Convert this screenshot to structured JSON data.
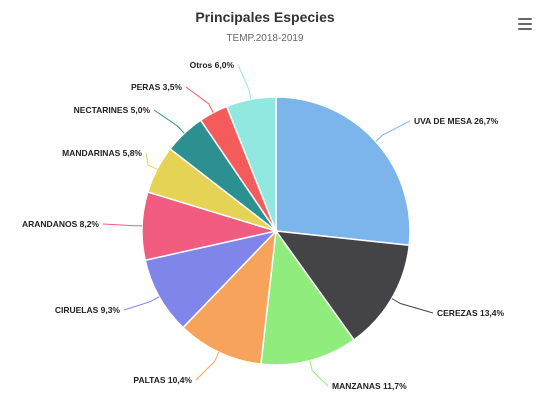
{
  "chart_data": {
    "type": "pie",
    "title": "Principales Especies",
    "subtitle": "TEMP.2018-2019",
    "slices": [
      {
        "label": "UVA DE MESA 26,7%",
        "value": 26.7,
        "color": "#7cb5ec"
      },
      {
        "label": "CEREZAS 13,4%",
        "value": 13.4,
        "color": "#434348"
      },
      {
        "label": "MANZANAS 11,7%",
        "value": 11.7,
        "color": "#90ed7d"
      },
      {
        "label": "PALTAS 10,4%",
        "value": 10.4,
        "color": "#f7a35c"
      },
      {
        "label": "CIRUELAS 9,3%",
        "value": 9.3,
        "color": "#8085e9"
      },
      {
        "label": "ARANDANOS 8,2%",
        "value": 8.2,
        "color": "#f15c80"
      },
      {
        "label": "MANDARINAS 5,8%",
        "value": 5.8,
        "color": "#e4d354"
      },
      {
        "label": "NECTARINES 5,0%",
        "value": 5.0,
        "color": "#2b908f"
      },
      {
        "label": "PERAS 3,5%",
        "value": 3.5,
        "color": "#f45b5b"
      },
      {
        "label": "Otros 6,0%",
        "value": 6.0,
        "color": "#91e8e1"
      }
    ]
  },
  "menu": {
    "icon": "hamburger-menu-icon"
  }
}
